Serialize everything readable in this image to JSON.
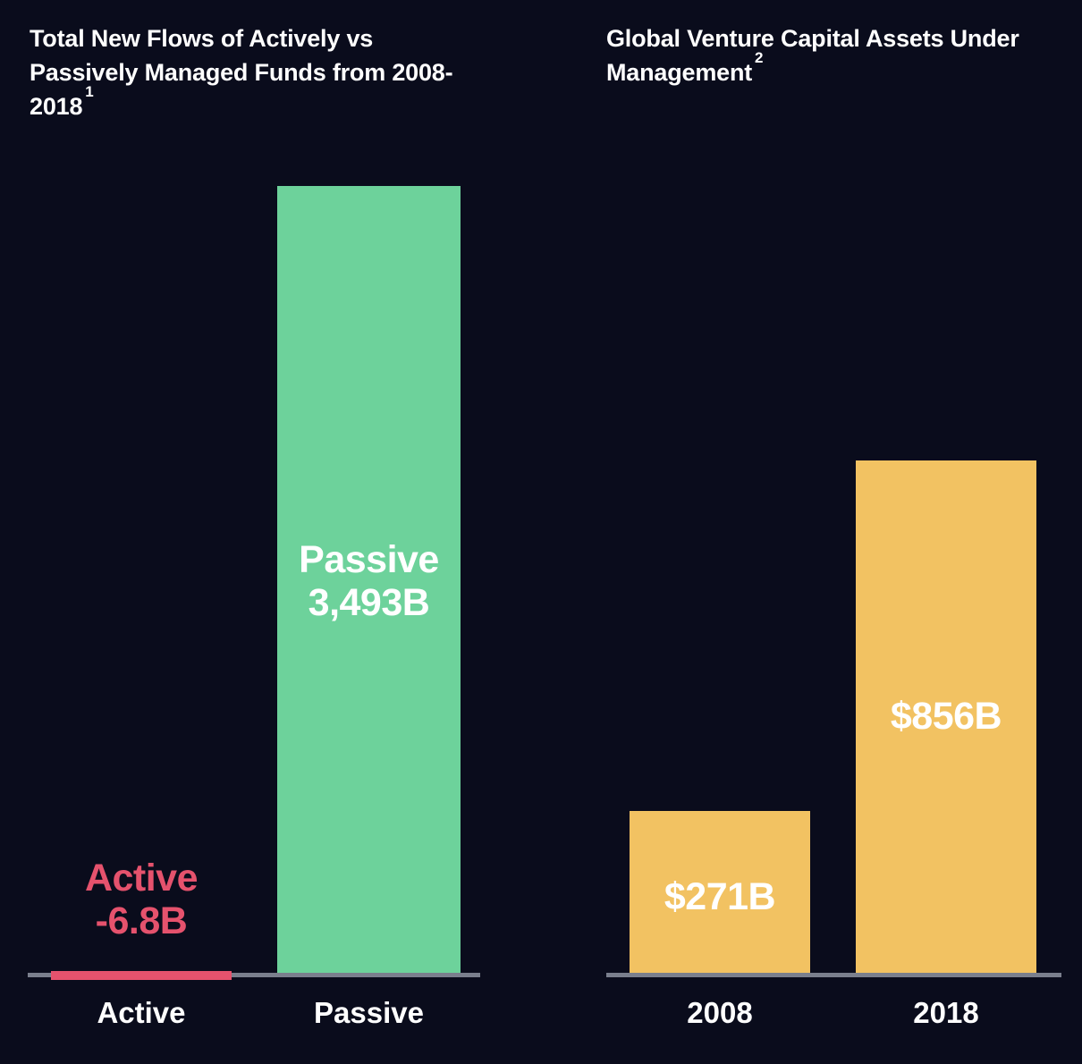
{
  "colors": {
    "background": "#0a0c1c",
    "title_text": "#ffffff",
    "axis_line": "#7a7f8d",
    "active_red": "#e5526d",
    "passive_green": "#6dd29b",
    "vc_yellow": "#f2c262",
    "bar_label_white": "#ffffff"
  },
  "chart_data": [
    {
      "type": "bar",
      "title": "Total New Flows of Actively vs Passively Managed Funds from 2008-2018",
      "title_lines": [
        "Total New Flows of Actively vs",
        "Passively Managed Funds from 2008-",
        "2018"
      ],
      "footnote_marker": "1",
      "unit": "billions USD",
      "categories": [
        "Active",
        "Passive"
      ],
      "values": [
        -6.8,
        3493
      ],
      "value_labels": [
        [
          "Active",
          "-6.8B"
        ],
        [
          "Passive",
          "3,493B"
        ]
      ],
      "bar_colors": [
        "#e5526d",
        "#6dd29b"
      ],
      "value_label_colors": [
        "#e5526d",
        "#ffffff"
      ],
      "ylim": [
        -6.8,
        3493
      ],
      "grid": false,
      "legend": "none",
      "axis_color": "#7a7f8d"
    },
    {
      "type": "bar",
      "title": "Global Venture Capital Assets Under Management",
      "title_lines": [
        "Global Venture Capital Assets Under",
        "Management"
      ],
      "footnote_marker": "2",
      "unit": "billions USD",
      "categories": [
        "2008",
        "2018"
      ],
      "values": [
        271,
        856
      ],
      "value_labels": [
        [
          "$271B"
        ],
        [
          "$856B"
        ]
      ],
      "bar_colors": [
        "#f2c262",
        "#f2c262"
      ],
      "value_label_colors": [
        "#ffffff",
        "#ffffff"
      ],
      "ylim": [
        0,
        856
      ],
      "grid": false,
      "legend": "none",
      "axis_color": "#7a7f8d"
    }
  ]
}
